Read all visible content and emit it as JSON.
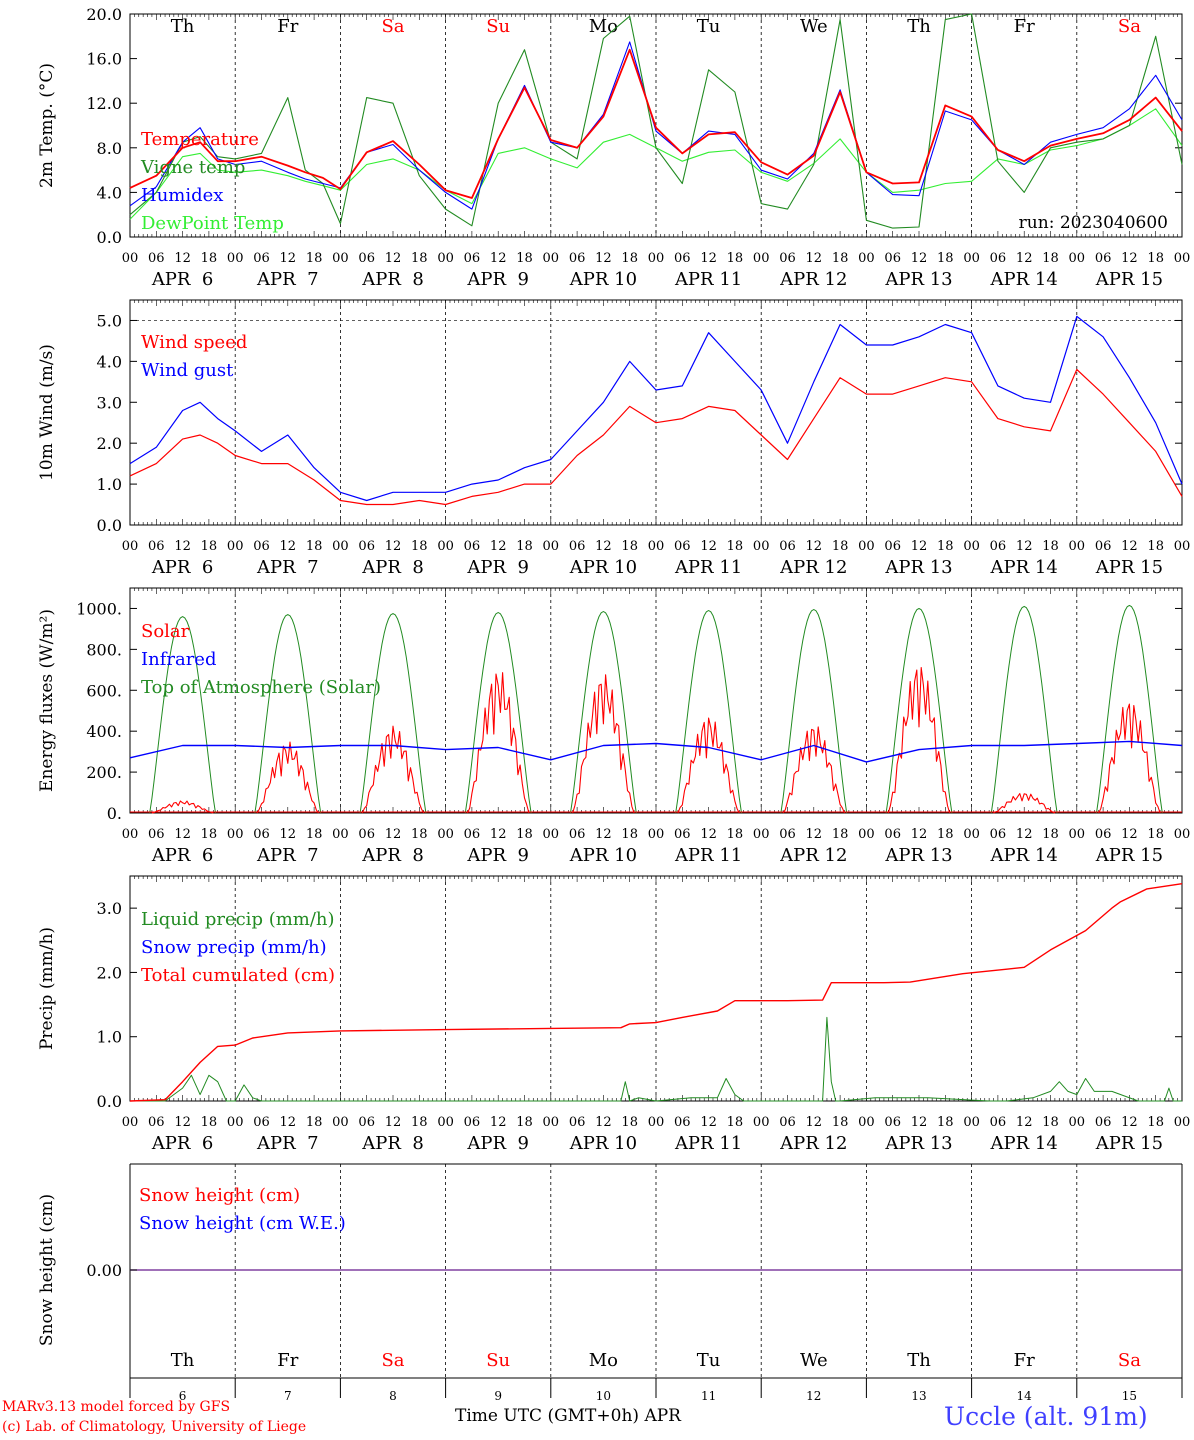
{
  "run_label": "run: 2023040600",
  "footer": {
    "credit_line1": "MARv3.13 model forced by GFS",
    "credit_line2": "(c) Lab. of Climatology, University of Liege",
    "time_axis_label": "Time UTC (GMT+0h) APR",
    "station": "Uccle (alt. 91m)"
  },
  "days": [
    {
      "date": "APR  6",
      "dow": "Th",
      "num": "6",
      "weekend": false
    },
    {
      "date": "APR  7",
      "dow": "Fr",
      "num": "7",
      "weekend": false
    },
    {
      "date": "APR  8",
      "dow": "Sa",
      "num": "8",
      "weekend": true
    },
    {
      "date": "APR  9",
      "dow": "Su",
      "num": "9",
      "weekend": true
    },
    {
      "date": "APR 10",
      "dow": "Mo",
      "num": "10",
      "weekend": false
    },
    {
      "date": "APR 11",
      "dow": "Tu",
      "num": "11",
      "weekend": false
    },
    {
      "date": "APR 12",
      "dow": "We",
      "num": "12",
      "weekend": false
    },
    {
      "date": "APR 13",
      "dow": "Th",
      "num": "13",
      "weekend": false
    },
    {
      "date": "APR 14",
      "dow": "Fr",
      "num": "14",
      "weekend": false
    },
    {
      "date": "APR 15",
      "dow": "Sa",
      "num": "15",
      "weekend": true
    }
  ],
  "hour_ticks": [
    "00",
    "06",
    "12",
    "18"
  ],
  "colors": {
    "red": "#ff0000",
    "green": "#228b22",
    "blue": "#0000ff",
    "lightgreen": "#33ee33",
    "weekend": "#ff0000",
    "purple": "#8040a0"
  },
  "chart_data": [
    {
      "id": "temp",
      "type": "line",
      "ylabel": "2m Temp. (°C)",
      "ylim": [
        0,
        20
      ],
      "yticks": [
        "0.0",
        "4.0",
        "8.0",
        "12.0",
        "16.0",
        "20.0"
      ],
      "x_unit": "hours since APR 6 00 UTC",
      "series": [
        {
          "name": "Temperature",
          "color": "red",
          "x": [
            0,
            6,
            12,
            16,
            20,
            24,
            30,
            36,
            40,
            44,
            48,
            54,
            60,
            66,
            72,
            78,
            84,
            90,
            96,
            102,
            108,
            114,
            120,
            126,
            132,
            138,
            144,
            150,
            156,
            162,
            168,
            174,
            180,
            186,
            192,
            198,
            204,
            210,
            216,
            222,
            228,
            234,
            240
          ],
          "y": [
            4.4,
            5.5,
            8.0,
            8.5,
            6.8,
            6.8,
            7.2,
            6.4,
            5.8,
            5.3,
            4.3,
            7.6,
            8.6,
            6.5,
            4.2,
            3.5,
            8.8,
            13.4,
            8.7,
            8.0,
            10.8,
            16.8,
            9.8,
            7.5,
            9.2,
            9.4,
            6.7,
            5.6,
            7.3,
            13.0,
            5.8,
            4.8,
            4.9,
            11.8,
            10.8,
            7.8,
            6.8,
            8.2,
            8.8,
            9.3,
            10.5,
            12.5,
            9.5
          ]
        },
        {
          "name": "Vigne temp",
          "color": "green",
          "x": [
            0,
            6,
            12,
            16,
            20,
            24,
            30,
            36,
            40,
            44,
            48,
            54,
            60,
            66,
            72,
            78,
            84,
            90,
            96,
            102,
            108,
            114,
            120,
            126,
            132,
            138,
            144,
            150,
            156,
            162,
            168,
            174,
            180,
            186,
            192,
            198,
            204,
            210,
            216,
            222,
            228,
            234,
            240
          ],
          "y": [
            2.0,
            4.0,
            8.5,
            9.0,
            7.2,
            7.0,
            7.5,
            12.5,
            6.0,
            4.8,
            1.2,
            12.5,
            12.0,
            5.5,
            2.5,
            1.0,
            12.0,
            16.8,
            8.5,
            7.0,
            17.8,
            19.8,
            8.0,
            4.8,
            15.0,
            13.0,
            3.0,
            2.5,
            6.5,
            19.5,
            1.5,
            0.8,
            0.9,
            19.5,
            20.0,
            6.8,
            4.0,
            8.0,
            8.5,
            8.8,
            10.0,
            18.0,
            6.5
          ]
        },
        {
          "name": "Humidex",
          "color": "blue",
          "x": [
            0,
            6,
            12,
            16,
            20,
            24,
            30,
            36,
            40,
            44,
            48,
            54,
            60,
            66,
            72,
            78,
            84,
            90,
            96,
            102,
            108,
            114,
            120,
            126,
            132,
            138,
            144,
            150,
            156,
            162,
            168,
            174,
            180,
            186,
            192,
            198,
            204,
            210,
            216,
            222,
            228,
            234,
            240
          ],
          "y": [
            2.8,
            4.5,
            8.5,
            9.8,
            7.0,
            6.5,
            6.8,
            5.8,
            5.2,
            4.8,
            4.4,
            7.6,
            8.3,
            6.0,
            4.0,
            2.5,
            8.8,
            13.6,
            8.5,
            8.0,
            11.0,
            17.5,
            9.5,
            7.5,
            9.5,
            9.2,
            6.0,
            5.2,
            7.5,
            13.2,
            5.8,
            3.8,
            3.7,
            11.3,
            10.5,
            7.8,
            6.5,
            8.5,
            9.2,
            9.8,
            11.5,
            14.5,
            10.5
          ]
        },
        {
          "name": "DewPoint Temp",
          "color": "lightgreen",
          "x": [
            0,
            6,
            12,
            16,
            20,
            24,
            30,
            36,
            40,
            44,
            48,
            54,
            60,
            66,
            72,
            78,
            84,
            90,
            96,
            102,
            108,
            114,
            120,
            126,
            132,
            138,
            144,
            150,
            156,
            162,
            168,
            174,
            180,
            186,
            192,
            198,
            204,
            210,
            216,
            222,
            228,
            234,
            240
          ],
          "y": [
            1.6,
            4.0,
            7.2,
            7.5,
            6.0,
            5.8,
            6.0,
            5.5,
            5.0,
            4.6,
            4.2,
            6.5,
            7.0,
            6.0,
            4.2,
            3.0,
            7.5,
            8.0,
            7.0,
            6.2,
            8.5,
            9.2,
            8.0,
            6.8,
            7.6,
            7.8,
            5.8,
            5.0,
            6.6,
            8.8,
            5.8,
            4.0,
            4.2,
            4.8,
            5.0,
            7.0,
            6.5,
            7.8,
            8.2,
            8.8,
            10.0,
            11.5,
            8.2
          ]
        }
      ]
    },
    {
      "id": "wind",
      "type": "line",
      "ylabel": "10m Wind (m/s)",
      "ylim": [
        0,
        5.5
      ],
      "yticks": [
        "0.0",
        "1.0",
        "2.0",
        "3.0",
        "4.0",
        "5.0"
      ],
      "x_unit": "hours since APR 6 00 UTC",
      "series": [
        {
          "name": "Wind speed",
          "color": "red",
          "x": [
            0,
            6,
            12,
            16,
            20,
            24,
            30,
            36,
            42,
            48,
            54,
            60,
            66,
            72,
            78,
            84,
            90,
            96,
            102,
            108,
            114,
            120,
            126,
            132,
            138,
            144,
            150,
            156,
            162,
            168,
            174,
            180,
            186,
            192,
            198,
            204,
            210,
            216,
            222,
            228,
            234,
            240
          ],
          "y": [
            1.2,
            1.5,
            2.1,
            2.2,
            2.0,
            1.7,
            1.5,
            1.5,
            1.1,
            0.6,
            0.5,
            0.5,
            0.6,
            0.5,
            0.7,
            0.8,
            1.0,
            1.0,
            1.7,
            2.2,
            2.9,
            2.5,
            2.6,
            2.9,
            2.8,
            2.2,
            1.6,
            2.6,
            3.6,
            3.2,
            3.2,
            3.4,
            3.6,
            3.5,
            2.6,
            2.4,
            2.3,
            3.8,
            3.2,
            2.5,
            1.8,
            0.7
          ]
        },
        {
          "name": "Wind gust",
          "color": "blue",
          "x": [
            0,
            6,
            12,
            16,
            20,
            24,
            30,
            36,
            42,
            48,
            54,
            60,
            66,
            72,
            78,
            84,
            90,
            96,
            102,
            108,
            114,
            120,
            126,
            132,
            138,
            144,
            150,
            156,
            162,
            168,
            174,
            180,
            186,
            192,
            198,
            204,
            210,
            216,
            222,
            228,
            234,
            240
          ],
          "y": [
            1.5,
            1.9,
            2.8,
            3.0,
            2.6,
            2.3,
            1.8,
            2.2,
            1.4,
            0.8,
            0.6,
            0.8,
            0.8,
            0.8,
            1.0,
            1.1,
            1.4,
            1.6,
            2.3,
            3.0,
            4.0,
            3.3,
            3.4,
            4.7,
            4.0,
            3.3,
            2.0,
            3.5,
            4.9,
            4.4,
            4.4,
            4.6,
            4.9,
            4.7,
            3.4,
            3.1,
            3.0,
            5.1,
            4.6,
            3.6,
            2.5,
            1.0
          ]
        }
      ]
    },
    {
      "id": "flux",
      "type": "line",
      "ylabel": "Energy fluxes (W/m²)",
      "ylim": [
        0,
        1100
      ],
      "yticks": [
        "0.",
        "200.",
        "400.",
        "600.",
        "800.",
        "1000."
      ],
      "x_unit": "hours since APR 6 00 UTC",
      "series": [
        {
          "name": "Solar",
          "color": "red",
          "daily_peak": [
            60,
            350,
            430,
            710,
            690,
            480,
            440,
            740,
            100,
            560
          ]
        },
        {
          "name": "Infrared",
          "color": "blue",
          "x": [
            0,
            12,
            24,
            36,
            48,
            60,
            72,
            84,
            96,
            108,
            120,
            132,
            144,
            156,
            168,
            180,
            192,
            204,
            216,
            228,
            240
          ],
          "y": [
            270,
            330,
            330,
            320,
            330,
            330,
            310,
            320,
            260,
            330,
            340,
            320,
            260,
            330,
            250,
            310,
            330,
            330,
            340,
            350,
            330
          ]
        },
        {
          "name": "Top of Atmosphere (Solar)",
          "color": "green",
          "daily_peak": [
            960,
            970,
            975,
            980,
            985,
            990,
            995,
            1000,
            1010,
            1015
          ]
        }
      ]
    },
    {
      "id": "precip",
      "type": "line",
      "ylabel": "Precip (mm/h)",
      "ylim": [
        0,
        3.5
      ],
      "yticks": [
        "0.0",
        "1.0",
        "2.0",
        "3.0"
      ],
      "x_unit": "hours since APR 6 00 UTC",
      "series": [
        {
          "name": "Liquid precip (mm/h)",
          "color": "green",
          "x": [
            0,
            8,
            12,
            14,
            16,
            18,
            20,
            22,
            24,
            26,
            28,
            30,
            36,
            48,
            96,
            112,
            113,
            114,
            116,
            120,
            128,
            134,
            136,
            138,
            140,
            158,
            159,
            160,
            161,
            162,
            170,
            182,
            196,
            200,
            206,
            210,
            212,
            214,
            216,
            218,
            220,
            224,
            230,
            236,
            237,
            238,
            240
          ],
          "y": [
            0,
            0,
            0.2,
            0.4,
            0.1,
            0.4,
            0.3,
            0,
            0,
            0.25,
            0.05,
            0,
            0,
            0,
            0,
            0,
            0.3,
            0,
            0.05,
            0,
            0.05,
            0.05,
            0.35,
            0.1,
            0,
            0,
            1.3,
            0.3,
            0,
            0,
            0.05,
            0.05,
            0,
            0,
            0.05,
            0.15,
            0.3,
            0.15,
            0.1,
            0.35,
            0.15,
            0.15,
            0,
            0,
            0.2,
            0,
            0
          ]
        },
        {
          "name": "Snow precip (mm/h)",
          "color": "blue",
          "x": [
            0,
            240
          ],
          "y": [
            0,
            0
          ]
        },
        {
          "name": "Total cumulated (cm)",
          "color": "red",
          "x": [
            0,
            8,
            12,
            16,
            20,
            24,
            28,
            36,
            48,
            72,
            96,
            112,
            114,
            120,
            126,
            134,
            138,
            150,
            158,
            160,
            172,
            178,
            190,
            200,
            204,
            210,
            218,
            224,
            226,
            232,
            240
          ],
          "y": [
            0,
            0.02,
            0.3,
            0.6,
            0.85,
            0.87,
            0.98,
            1.06,
            1.09,
            1.11,
            1.13,
            1.14,
            1.2,
            1.22,
            1.3,
            1.4,
            1.56,
            1.56,
            1.57,
            1.84,
            1.84,
            1.85,
            1.98,
            2.05,
            2.08,
            2.35,
            2.65,
            3.0,
            3.1,
            3.3,
            3.38
          ]
        }
      ]
    },
    {
      "id": "snow",
      "type": "line",
      "ylabel": "Snow height (cm)",
      "yticks": [
        "0.00"
      ],
      "x_unit": "hours since APR 6 00 UTC",
      "series": [
        {
          "name": "Snow height (cm)",
          "color": "red",
          "x": [
            0,
            240
          ],
          "y": [
            0,
            0
          ]
        },
        {
          "name": "Snow height (cm W.E.)",
          "color": "blue",
          "x": [
            0,
            240
          ],
          "y": [
            0,
            0
          ]
        }
      ]
    }
  ]
}
